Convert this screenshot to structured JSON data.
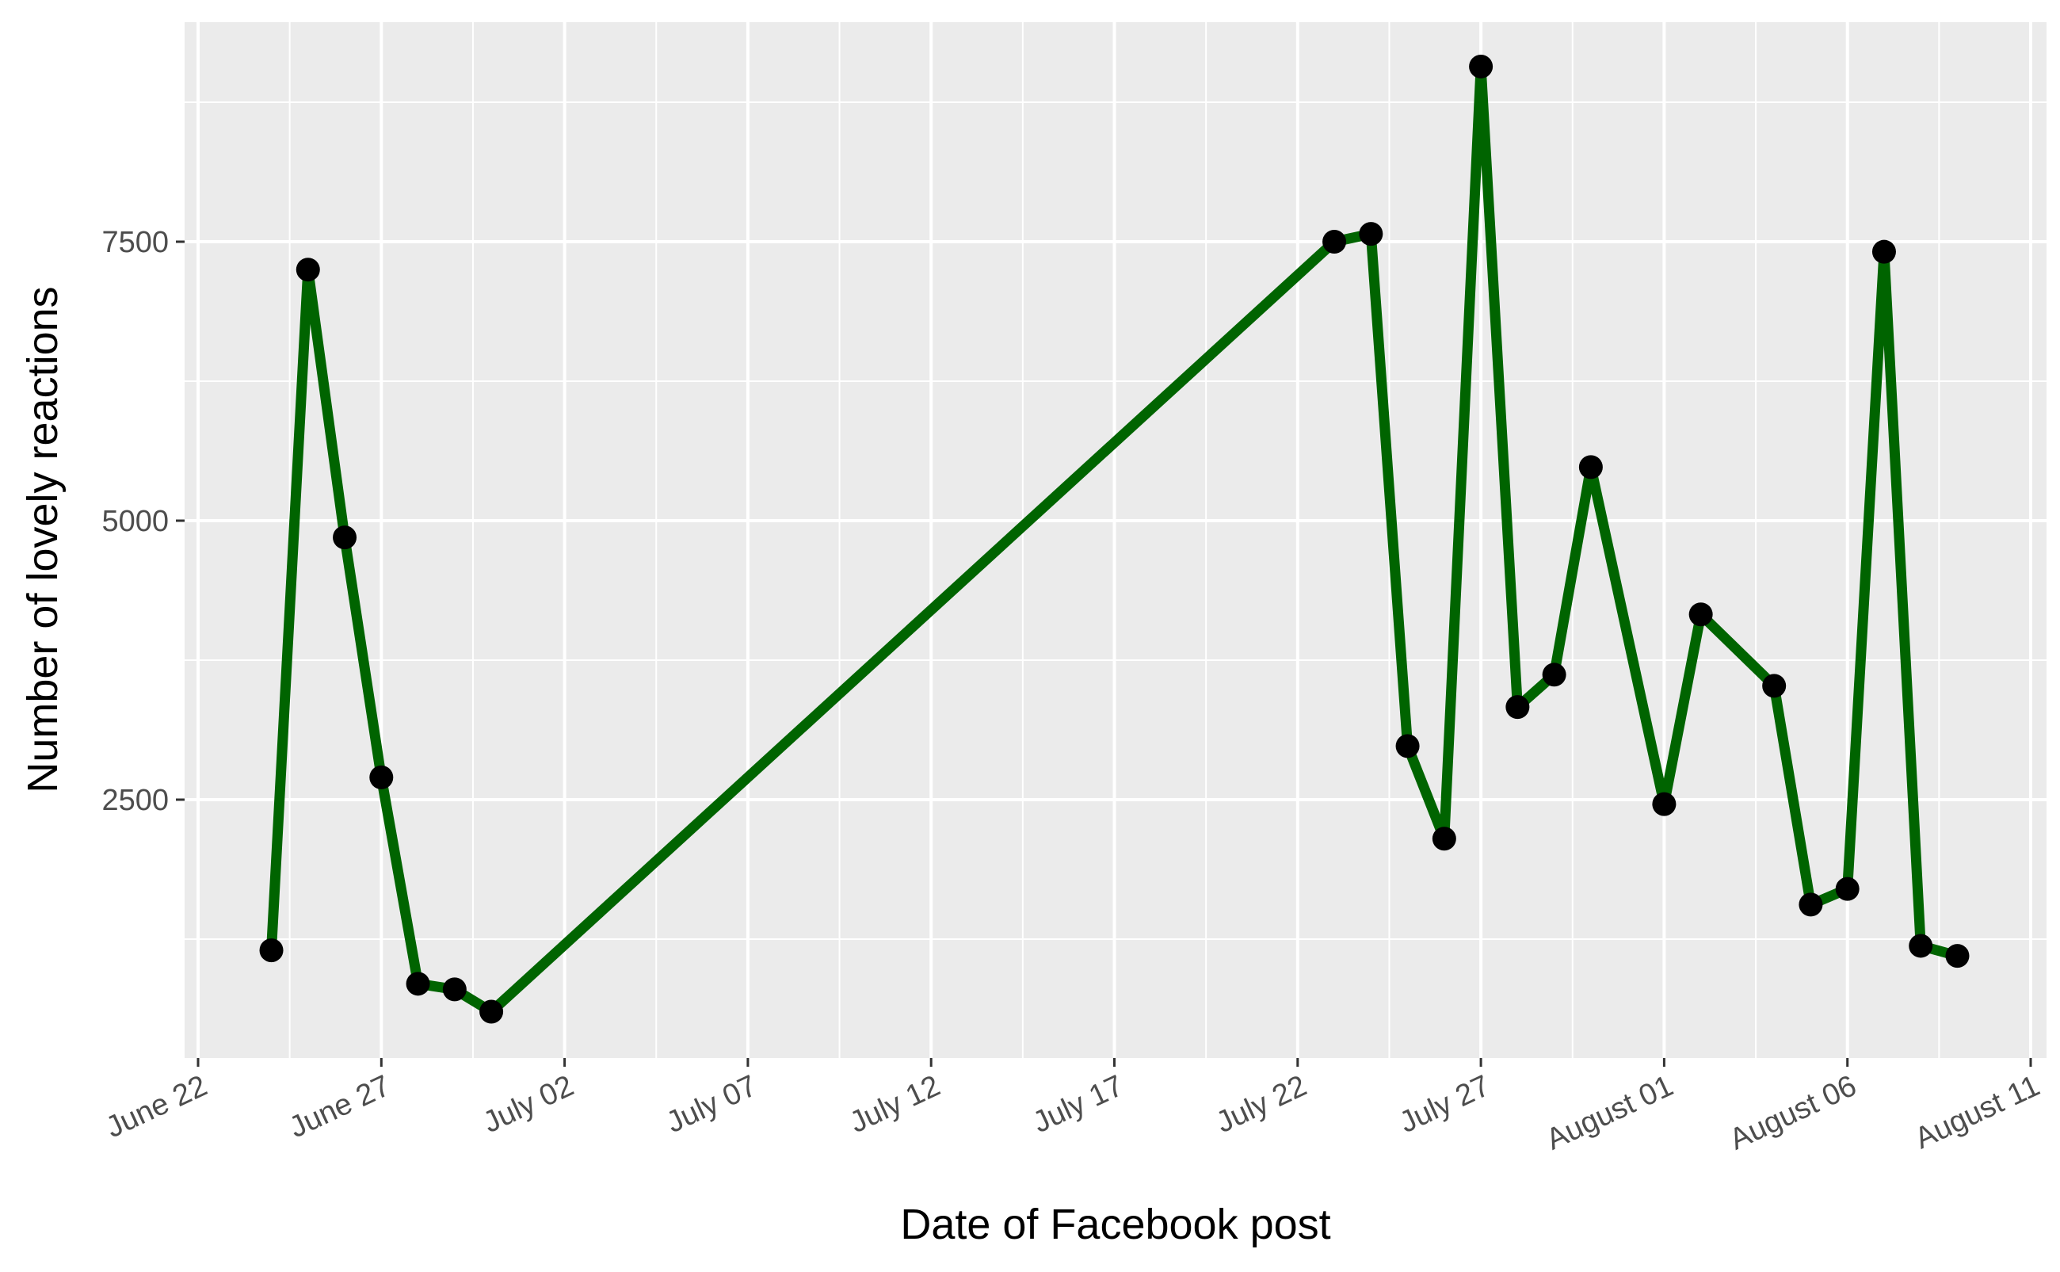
{
  "chart_data": {
    "type": "line",
    "title": "",
    "xlabel": "Date of Facebook post",
    "ylabel": "Number of lovely reactions",
    "xlim": [
      "2022-06-22",
      "2022-08-11"
    ],
    "ylim": [
      0,
      9500
    ],
    "x_ticks": [
      {
        "date": "2022-06-22",
        "label": "June 22"
      },
      {
        "date": "2022-06-27",
        "label": "June 27"
      },
      {
        "date": "2022-07-02",
        "label": "July 02"
      },
      {
        "date": "2022-07-07",
        "label": "July 07"
      },
      {
        "date": "2022-07-12",
        "label": "July 12"
      },
      {
        "date": "2022-07-17",
        "label": "July 17"
      },
      {
        "date": "2022-07-22",
        "label": "July 22"
      },
      {
        "date": "2022-07-27",
        "label": "July 27"
      },
      {
        "date": "2022-08-01",
        "label": "August 01"
      },
      {
        "date": "2022-08-06",
        "label": "August 06"
      },
      {
        "date": "2022-08-11",
        "label": "August 11"
      }
    ],
    "y_ticks": [
      {
        "value": 2500,
        "label": "2500"
      },
      {
        "value": 5000,
        "label": "5000"
      },
      {
        "value": 7500,
        "label": "7500"
      }
    ],
    "grid": true,
    "legend": "none",
    "line_color": "#006400",
    "point_color": "#000000",
    "panel_background": "#ebebeb",
    "grid_color": "#ffffff",
    "series": [
      {
        "points": [
          {
            "x": "2022-06-24",
            "y": 1150
          },
          {
            "x": "2022-06-25",
            "y": 7250
          },
          {
            "x": "2022-06-26",
            "y": 4850
          },
          {
            "x": "2022-06-27",
            "y": 2700
          },
          {
            "x": "2022-06-28",
            "y": 850
          },
          {
            "x": "2022-06-29",
            "y": 800
          },
          {
            "x": "2022-06-30",
            "y": 600
          },
          {
            "x": "2022-07-23",
            "y": 7500
          },
          {
            "x": "2022-07-24",
            "y": 7570
          },
          {
            "x": "2022-07-25",
            "y": 2980
          },
          {
            "x": "2022-07-26",
            "y": 2150
          },
          {
            "x": "2022-07-27",
            "y": 9070
          },
          {
            "x": "2022-07-28",
            "y": 3330
          },
          {
            "x": "2022-07-29",
            "y": 3620
          },
          {
            "x": "2022-07-30",
            "y": 5480
          },
          {
            "x": "2022-08-01",
            "y": 2460
          },
          {
            "x": "2022-08-02",
            "y": 4160
          },
          {
            "x": "2022-08-04",
            "y": 3520
          },
          {
            "x": "2022-08-05",
            "y": 1560
          },
          {
            "x": "2022-08-06",
            "y": 1700
          },
          {
            "x": "2022-08-07",
            "y": 7410
          },
          {
            "x": "2022-08-08",
            "y": 1190
          },
          {
            "x": "2022-08-09",
            "y": 1100
          }
        ]
      }
    ]
  }
}
